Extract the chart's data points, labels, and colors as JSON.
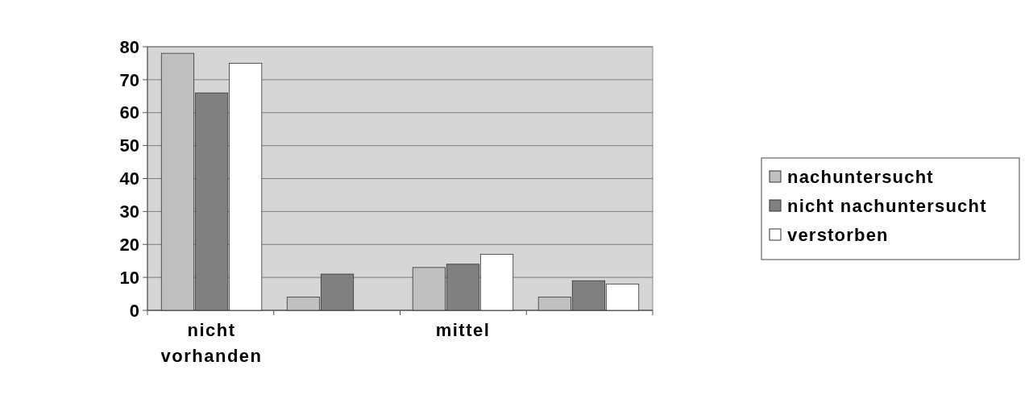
{
  "chart_data": {
    "type": "bar",
    "categories": [
      "nicht vorhanden",
      null,
      "mittel",
      null
    ],
    "series": [
      {
        "name": "nachuntersucht",
        "color": "#c0c0c0",
        "values": [
          78,
          4,
          13,
          4
        ]
      },
      {
        "name": "nicht nachuntersucht",
        "color": "#808080",
        "values": [
          66,
          11,
          14,
          9
        ]
      },
      {
        "name": "verstorben",
        "color": "#ffffff",
        "values": [
          75,
          0,
          17,
          8
        ]
      }
    ],
    "ylim": [
      0,
      80
    ],
    "yticks": [
      0,
      10,
      20,
      30,
      40,
      50,
      60,
      70,
      80
    ],
    "grid": "y",
    "legend": "right"
  }
}
